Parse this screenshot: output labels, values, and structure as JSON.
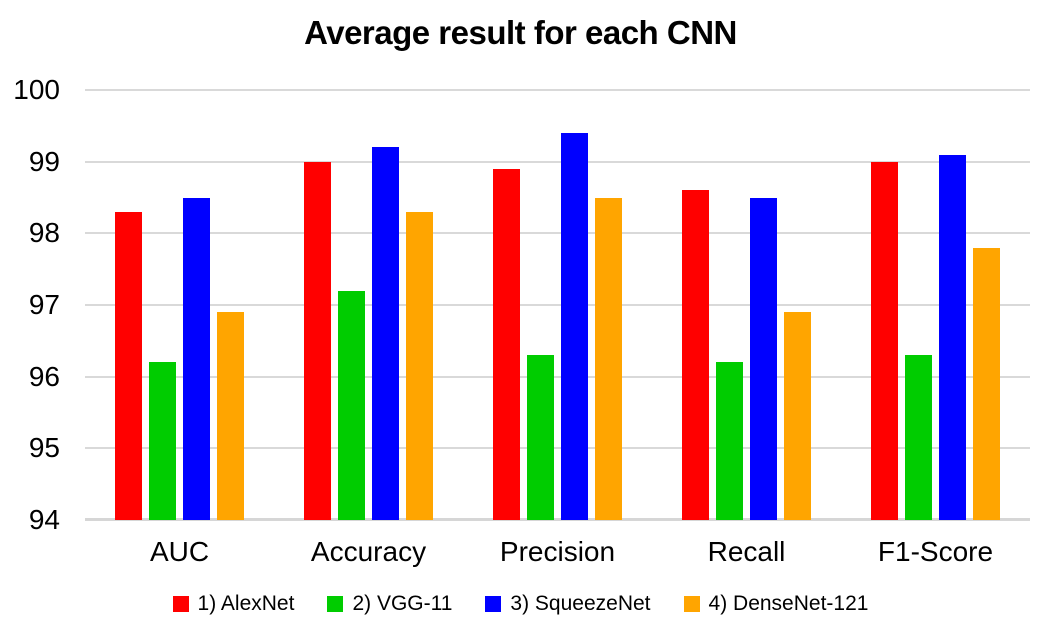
{
  "title": "Average result for each CNN",
  "chart_data": {
    "type": "bar",
    "title": "Average result for each CNN",
    "categories": [
      "AUC",
      "Accuracy",
      "Precision",
      "Recall",
      "F1-Score"
    ],
    "series": [
      {
        "name": "1) AlexNet",
        "color": "#FF0000",
        "values": [
          98.3,
          99.0,
          98.9,
          98.6,
          99.0
        ]
      },
      {
        "name": "2) VGG-11",
        "color": "#00CC00",
        "values": [
          96.2,
          97.2,
          96.3,
          96.2,
          96.3
        ]
      },
      {
        "name": "3) SqueezeNet",
        "color": "#0000FF",
        "values": [
          98.5,
          99.2,
          99.4,
          98.5,
          99.1
        ]
      },
      {
        "name": "4) DenseNet-121",
        "color": "#FFA500",
        "values": [
          96.9,
          98.3,
          98.5,
          96.9,
          97.8
        ]
      }
    ],
    "ylim": [
      94,
      100
    ],
    "yticks": [
      100,
      99,
      98,
      97,
      96,
      95,
      94
    ],
    "xlabel": "",
    "ylabel": "",
    "grid": true,
    "legend_position": "bottom"
  },
  "colors": {
    "background": "#FFFFFF",
    "gridline": "#D9D9D9",
    "axis_line": "#D6D6D6",
    "text": "#000000"
  }
}
